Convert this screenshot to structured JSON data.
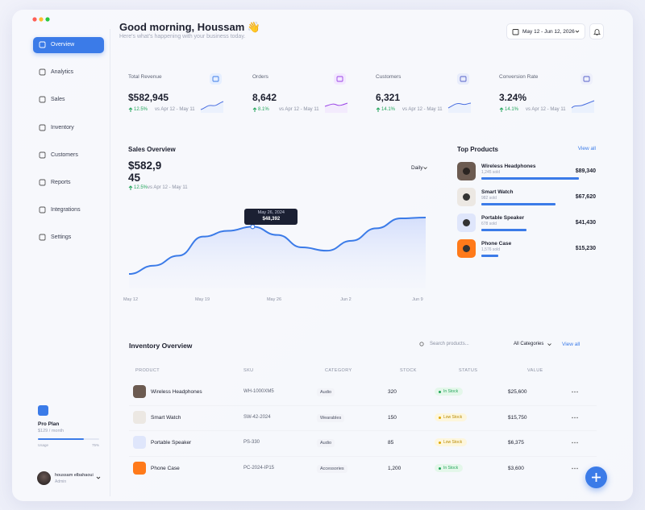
{
  "header": {
    "greeting": "Good morning, Houssam 👋",
    "subtitle": "Here's what's happening with your business today.",
    "date_range": "May 12 - Jun 12, 2026"
  },
  "sidebar": {
    "nav": [
      "Overview",
      "Analytics",
      "Sales",
      "Inventory",
      "Customers",
      "Reports",
      "Integrations",
      "Settings"
    ],
    "plan": {
      "title": "Pro Plan",
      "price": "$129 / month",
      "usage_label": "Usage",
      "usage": {
        "value": 75,
        "label": "75%"
      }
    },
    "user": {
      "name": "houssam elbahaoui",
      "role": "Admin"
    }
  },
  "kpis": [
    {
      "label": "Total Revenue",
      "value": "$582,945",
      "change": "12.5%",
      "compare": "vs Apr 12 - May 11"
    },
    {
      "label": "Orders",
      "value": "8,642",
      "change": "8.1%",
      "compare": "vs Apr 12 - May 11"
    },
    {
      "label": "Customers",
      "value": "6,321",
      "change": "14.1%",
      "compare": "vs Apr 12 - May 11"
    },
    {
      "label": "Conversion Rate",
      "value": "3.24%",
      "change": "14.1%",
      "compare": "vs Apr 12 - May 11"
    }
  ],
  "sales_overview": {
    "title": "Sales Overview",
    "total": "$582,945",
    "change": "12.5%",
    "compare": "vs Apr 12 - May 11",
    "period": "Daily",
    "tooltip": {
      "date": "May 26, 2024",
      "value": "$48,392"
    },
    "chart": {
      "type": "line",
      "color": "#3b7be8",
      "x_labels": [
        "May 12",
        "May 19",
        "May 26",
        "Jun 2",
        "Jun 9"
      ],
      "values": [
        37000,
        39000,
        41400,
        46000,
        47400,
        48392,
        46400,
        43400,
        42600,
        45000,
        48000,
        50400,
        50600
      ]
    }
  },
  "top_products": {
    "title": "Top Products",
    "view_all": "View all",
    "items": [
      {
        "name": "Wireless Headphones",
        "sold": "1,245 sold",
        "revenue": {
          "value": 89340,
          "label": "$89,340"
        }
      },
      {
        "name": "Smart Watch",
        "sold": "982 sold",
        "revenue": {
          "value": 67620,
          "label": "$67,620"
        }
      },
      {
        "name": "Portable Speaker",
        "sold": "678 sold",
        "revenue": {
          "value": 41430,
          "label": "$41,430"
        }
      },
      {
        "name": "Phone Case",
        "sold": "1,576 sold",
        "revenue": {
          "value": 15230,
          "label": "$15,230"
        }
      }
    ]
  },
  "inventory": {
    "title": "Inventory Overview",
    "search_placeholder": "Search products...",
    "filter": "All Categories",
    "view_all": "View all",
    "columns": [
      "PRODUCT",
      "SKU",
      "CATEGORY",
      "STOCK",
      "STATUS",
      "VALUE"
    ],
    "rows": [
      [
        "Wireless Headphones",
        "WH-1000XM5",
        "Audio",
        "320",
        "In Stock",
        "$25,600"
      ],
      [
        "Smart Watch",
        "SW-42-2024",
        "Wearables",
        "150",
        "Low Stock",
        "$15,750"
      ],
      [
        "Portable Speaker",
        "PS-330",
        "Audio",
        "85",
        "Low Stock",
        "$6,375"
      ],
      [
        "Phone Case",
        "PC-2024-IP15",
        "Accessories",
        "1,200",
        "In Stock",
        "$3,600"
      ]
    ]
  }
}
